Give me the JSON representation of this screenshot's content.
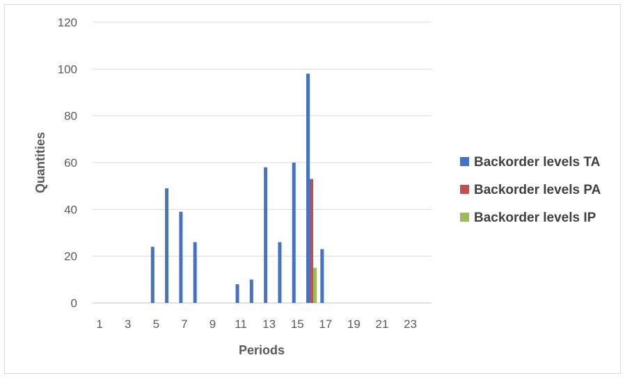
{
  "chart_data": {
    "type": "bar",
    "title": "",
    "xlabel": "Periods",
    "ylabel": "Quantities",
    "ylim": [
      0,
      120
    ],
    "yticks": [
      0,
      20,
      40,
      60,
      80,
      100,
      120
    ],
    "categories": [
      1,
      2,
      3,
      4,
      5,
      6,
      7,
      8,
      9,
      10,
      11,
      12,
      13,
      14,
      15,
      16,
      17,
      18,
      19,
      20,
      21,
      22,
      23,
      24
    ],
    "xtick_labels": [
      "1",
      "3",
      "5",
      "7",
      "9",
      "11",
      "13",
      "15",
      "17",
      "19",
      "21",
      "23"
    ],
    "grid": true,
    "legend_position": "right",
    "series": [
      {
        "name": "Backorder levels TA",
        "color": "#4472c4",
        "values": [
          0,
          0,
          0,
          0,
          24,
          49,
          39,
          26,
          0,
          0,
          8,
          10,
          58,
          26,
          60,
          98,
          23,
          0,
          0,
          0,
          0,
          0,
          0,
          0
        ]
      },
      {
        "name": "Backorder levels PA",
        "color": "#c0504d",
        "values": [
          0,
          0,
          0,
          0,
          0,
          0,
          0,
          0,
          0,
          0,
          0,
          0,
          0,
          0,
          0,
          53,
          0,
          0,
          0,
          0,
          0,
          0,
          0,
          0
        ]
      },
      {
        "name": "Backorder levels  IP",
        "color": "#9bbb59",
        "values": [
          0,
          0,
          0,
          0,
          0,
          0,
          0,
          0,
          0,
          0,
          0,
          0,
          0,
          0,
          0,
          15,
          0,
          0,
          0,
          0,
          0,
          0,
          0,
          0
        ]
      }
    ]
  }
}
